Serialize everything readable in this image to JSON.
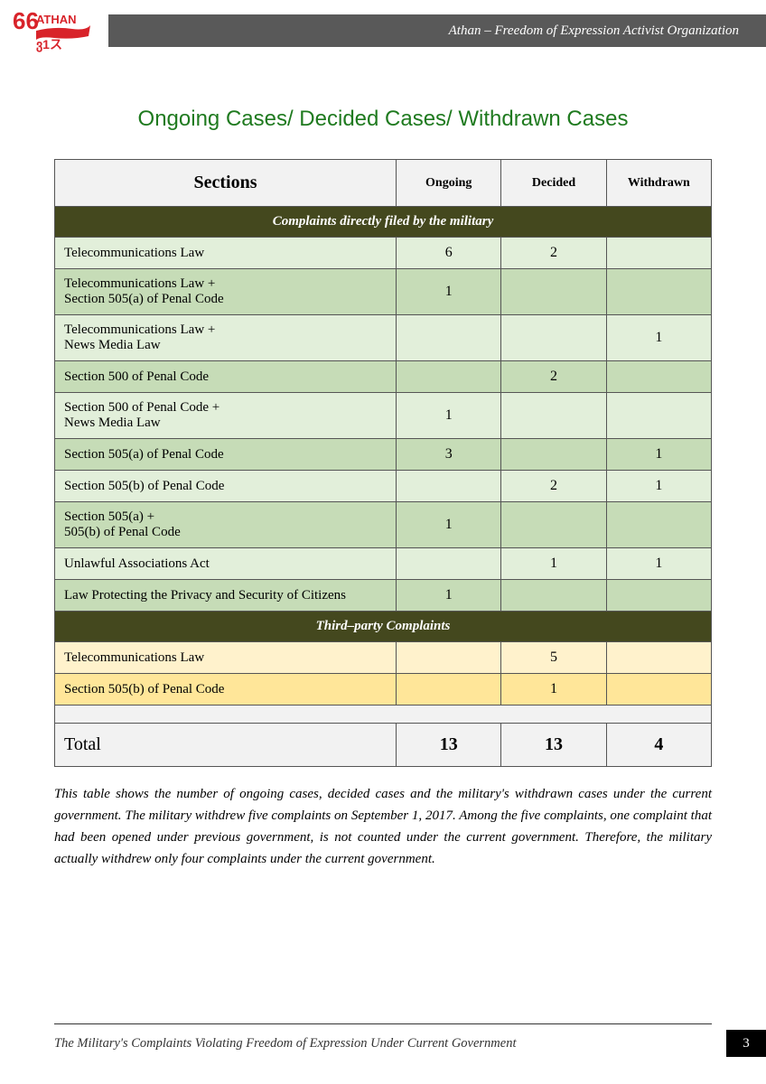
{
  "header": {
    "org_text": "Athan – Freedom of Expression Activist Organization",
    "logo_text_top": "ATHAN"
  },
  "title": "Ongoing Cases/ Decided Cases/ Withdrawn Cases",
  "table": {
    "headers": {
      "sections": "Sections",
      "ongoing": "Ongoing",
      "decided": "Decided",
      "withdrawn": "Withdrawn"
    },
    "section1_header": "Complaints directly filed by the military",
    "rows_military": [
      {
        "label": "Telecommunications Law",
        "ongoing": "6",
        "decided": "2",
        "withdrawn": ""
      },
      {
        "label": "Telecommunications Law +\nSection 505(a) of Penal Code",
        "ongoing": "1",
        "decided": "",
        "withdrawn": ""
      },
      {
        "label": "Telecommunications Law +\nNews Media   Law",
        "ongoing": "",
        "decided": "",
        "withdrawn": "1"
      },
      {
        "label": "Section 500 of Penal Code",
        "ongoing": "",
        "decided": "2",
        "withdrawn": ""
      },
      {
        "label": "Section 500 of Penal Code +\nNews Media Law",
        "ongoing": "1",
        "decided": "",
        "withdrawn": ""
      },
      {
        "label": "Section 505(a) of Penal Code",
        "ongoing": "3",
        "decided": "",
        "withdrawn": "1"
      },
      {
        "label": "Section 505(b) of Penal Code",
        "ongoing": "",
        "decided": "2",
        "withdrawn": "1"
      },
      {
        "label": "Section 505(a) +\n505(b) of Penal Code",
        "ongoing": "1",
        "decided": "",
        "withdrawn": ""
      },
      {
        "label": "Unlawful Associations Act",
        "ongoing": "",
        "decided": "1",
        "withdrawn": "1"
      },
      {
        "label": "Law Protecting the Privacy and Security of Citizens",
        "ongoing": "1",
        "decided": "",
        "withdrawn": ""
      }
    ],
    "section2_header": "Third–party Complaints",
    "rows_thirdparty": [
      {
        "label": "Telecommunications Law",
        "ongoing": "",
        "decided": "5",
        "withdrawn": ""
      },
      {
        "label": "Section 505(b) of Penal Code",
        "ongoing": "",
        "decided": "1",
        "withdrawn": ""
      }
    ],
    "total": {
      "label": "Total",
      "ongoing": "13",
      "decided": "13",
      "withdrawn": "4"
    }
  },
  "caption": "This table shows the number of ongoing cases, decided cases and the military's withdrawn cases under the current government. The military withdrew five complaints on September 1, 2017. Among the five complaints, one complaint that had been opened under previous government, is not counted under the current government. Therefore, the military actually withdrew only four complaints under the current government.",
  "footer": {
    "text": "The Military's Complaints Violating Freedom of Expression Under Current Government",
    "page": "3"
  },
  "colors": {
    "title_green": "#1f7a1f",
    "section_header_bg": "#44481e",
    "green_light": "#e2efda",
    "green_dark": "#c6dcb7",
    "yellow_light": "#fff2cc",
    "yellow_dark": "#ffe699",
    "header_gray": "#f2f2f2",
    "header_bar": "#595959",
    "logo_red": "#d8232a"
  }
}
